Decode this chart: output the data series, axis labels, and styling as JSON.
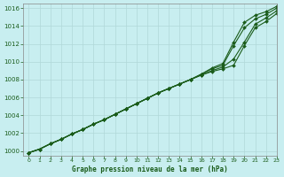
{
  "title": "Graphe pression niveau de la mer (hPa)",
  "bg_color": "#c8eef0",
  "grid_color": "#b0d8d8",
  "line_color": "#1a5c1a",
  "text_color": "#1a5c1a",
  "xlim": [
    -0.5,
    23
  ],
  "ylim": [
    999.5,
    1016.5
  ],
  "yticks": [
    1000,
    1002,
    1004,
    1006,
    1008,
    1010,
    1012,
    1014,
    1016
  ],
  "xticks": [
    0,
    1,
    2,
    3,
    4,
    5,
    6,
    7,
    8,
    9,
    10,
    11,
    12,
    13,
    14,
    15,
    16,
    17,
    18,
    19,
    20,
    21,
    22,
    23
  ],
  "series": [
    [
      999.8,
      1000.2,
      1000.8,
      1001.3,
      1001.9,
      1002.4,
      1003.0,
      1003.5,
      1004.1,
      1004.7,
      1005.3,
      1005.9,
      1006.5,
      1007.0,
      1007.5,
      1008.0,
      1008.6,
      1009.3,
      1009.8,
      1012.2,
      1014.4,
      1015.2,
      1015.6,
      1016.2
    ],
    [
      999.8,
      1000.2,
      1000.8,
      1001.3,
      1001.9,
      1002.4,
      1003.0,
      1003.5,
      1004.1,
      1004.7,
      1005.3,
      1005.9,
      1006.5,
      1007.0,
      1007.5,
      1008.0,
      1008.6,
      1009.2,
      1009.6,
      1011.8,
      1013.8,
      1014.8,
      1015.3,
      1016.0
    ],
    [
      999.8,
      1000.2,
      1000.8,
      1001.3,
      1001.9,
      1002.4,
      1003.0,
      1003.5,
      1004.1,
      1004.7,
      1005.3,
      1005.9,
      1006.5,
      1007.0,
      1007.5,
      1008.0,
      1008.5,
      1009.0,
      1009.4,
      1010.3,
      1012.2,
      1014.2,
      1014.9,
      1015.7
    ],
    [
      999.8,
      1000.2,
      1000.8,
      1001.3,
      1001.9,
      1002.4,
      1003.0,
      1003.5,
      1004.1,
      1004.7,
      1005.3,
      1005.9,
      1006.5,
      1007.0,
      1007.5,
      1008.0,
      1008.5,
      1008.9,
      1009.2,
      1009.6,
      1011.8,
      1013.8,
      1014.5,
      1015.4
    ]
  ]
}
